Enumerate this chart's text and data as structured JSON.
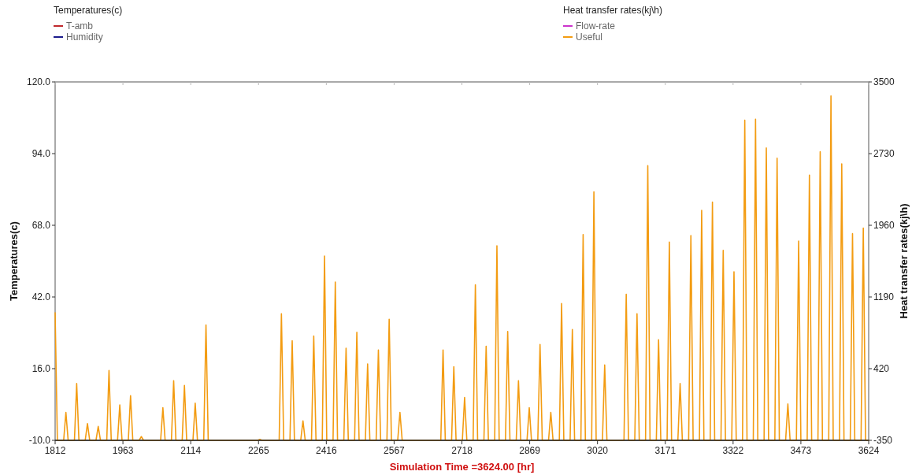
{
  "chart_data": {
    "type": "line",
    "xlabel": "Simulation Time =3624.00 [hr]",
    "ylabel": "Temperatures(c)",
    "y2label": "Heat transfer rates(kj\\h)",
    "xlim": [
      1812,
      3624
    ],
    "xticks": [
      1812,
      1963,
      2114,
      2265,
      2416,
      2567,
      2718,
      2869,
      3020,
      3171,
      3322,
      3473,
      3624
    ],
    "ylim": [
      -10,
      120
    ],
    "yticks": [
      {
        "value": -10,
        "label": "-10.0"
      },
      {
        "value": 16,
        "label": "16.0"
      },
      {
        "value": 42,
        "label": "42.0"
      },
      {
        "value": 68,
        "label": "68.0"
      },
      {
        "value": 94,
        "label": "94.0"
      },
      {
        "value": 120,
        "label": "120.0"
      }
    ],
    "y2lim": [
      -350,
      3500
    ],
    "y2ticks": [
      -350,
      420,
      1190,
      1960,
      2730,
      3500
    ],
    "legend": "top",
    "series": [
      {
        "name": "T-amb",
        "color": "#c0282d"
      },
      {
        "name": "Humidity",
        "color": "#1c1c8c"
      },
      {
        "name": "Flow-rate",
        "color": "#cc33cc",
        "axis": "y2"
      },
      {
        "name": "Useful",
        "color": "#f39c12",
        "axis": "y2",
        "x": [
          1812,
          1817,
          1831,
          1836,
          1841,
          1855,
          1860,
          1865,
          1879,
          1884,
          1889,
          1903,
          1908,
          1913,
          1927,
          1932,
          1937,
          1951,
          1956,
          1961,
          1975,
          1980,
          1985,
          1999,
          2004,
          2009,
          2047,
          2052,
          2057,
          2071,
          2076,
          2081,
          2095,
          2100,
          2105,
          2119,
          2124,
          2129,
          2143,
          2148,
          2153,
          2263,
          2268,
          2273,
          2311,
          2316,
          2321,
          2335,
          2340,
          2345,
          2359,
          2364,
          2369,
          2383,
          2388,
          2393,
          2407,
          2412,
          2417,
          2431,
          2436,
          2441,
          2455,
          2460,
          2465,
          2479,
          2484,
          2489,
          2503,
          2508,
          2513,
          2527,
          2532,
          2537,
          2551,
          2556,
          2561,
          2575,
          2580,
          2585,
          2671,
          2676,
          2681,
          2695,
          2700,
          2705,
          2719,
          2724,
          2729,
          2743,
          2748,
          2753,
          2767,
          2772,
          2777,
          2791,
          2796,
          2801,
          2815,
          2820,
          2825,
          2839,
          2844,
          2849,
          2863,
          2868,
          2873,
          2887,
          2892,
          2897,
          2911,
          2916,
          2921,
          2935,
          2940,
          2945,
          2959,
          2964,
          2969,
          2983,
          2988,
          2993,
          3007,
          3012,
          3017,
          3031,
          3036,
          3041,
          3079,
          3084,
          3089,
          3103,
          3108,
          3113,
          3127,
          3132,
          3137,
          3151,
          3156,
          3161,
          3175,
          3180,
          3185,
          3199,
          3204,
          3209,
          3223,
          3228,
          3233,
          3247,
          3252,
          3257,
          3271,
          3276,
          3281,
          3295,
          3300,
          3305,
          3319,
          3324,
          3329,
          3343,
          3348,
          3353,
          3367,
          3372,
          3377,
          3391,
          3396,
          3401,
          3415,
          3420,
          3425,
          3439,
          3444,
          3449,
          3463,
          3468,
          3473,
          3487,
          3492,
          3497,
          3511,
          3516,
          3521,
          3535,
          3540,
          3545,
          3559,
          3564,
          3569,
          3583,
          3588,
          3593,
          3607,
          3612,
          3617,
          3624
        ],
        "values": [
          1020,
          -350,
          -350,
          -50,
          -350,
          -350,
          260,
          -350,
          -350,
          -170,
          -350,
          -350,
          -200,
          -350,
          -350,
          400,
          -350,
          -350,
          30,
          -350,
          -350,
          130,
          -350,
          -350,
          -310,
          -350,
          -350,
          0,
          -350,
          -350,
          290,
          -350,
          -350,
          240,
          -350,
          -350,
          50,
          -350,
          -350,
          890,
          -350,
          -350,
          -340,
          -350,
          -350,
          1010,
          -350,
          -350,
          720,
          -350,
          -350,
          -140,
          -350,
          -350,
          770,
          -350,
          -350,
          1630,
          -350,
          -350,
          1350,
          -350,
          -350,
          640,
          -350,
          -350,
          810,
          -350,
          -350,
          470,
          -350,
          -350,
          620,
          -350,
          -350,
          950,
          -350,
          -350,
          -50,
          -350,
          -350,
          620,
          -350,
          -350,
          440,
          -350,
          -350,
          110,
          -350,
          -350,
          1320,
          -350,
          -350,
          660,
          -350,
          -350,
          1740,
          -350,
          -350,
          820,
          -350,
          -350,
          290,
          -350,
          -350,
          0,
          -350,
          -350,
          680,
          -350,
          -350,
          -50,
          -350,
          -350,
          1120,
          -350,
          -350,
          840,
          -350,
          -350,
          1860,
          -350,
          -350,
          2320,
          -350,
          -350,
          460,
          -350,
          -350,
          1220,
          -350,
          -350,
          1010,
          -350,
          -350,
          2600,
          -350,
          -350,
          730,
          -350,
          -350,
          1780,
          -350,
          -350,
          260,
          -350,
          -350,
          1850,
          -350,
          -350,
          2120,
          -350,
          -350,
          2210,
          -350,
          -350,
          1690,
          -350,
          -350,
          1460,
          -350,
          -350,
          3090,
          -350,
          -350,
          3100,
          -350,
          -350,
          2790,
          -350,
          -350,
          2680,
          -350,
          -350,
          40,
          -350,
          -350,
          1790,
          -350,
          -350,
          2500,
          -350,
          -350,
          2750,
          -350,
          -350,
          3350,
          -350,
          -350,
          2620,
          -350,
          -350,
          1870,
          -350,
          -350,
          1930,
          -350,
          -350
        ]
      }
    ]
  }
}
